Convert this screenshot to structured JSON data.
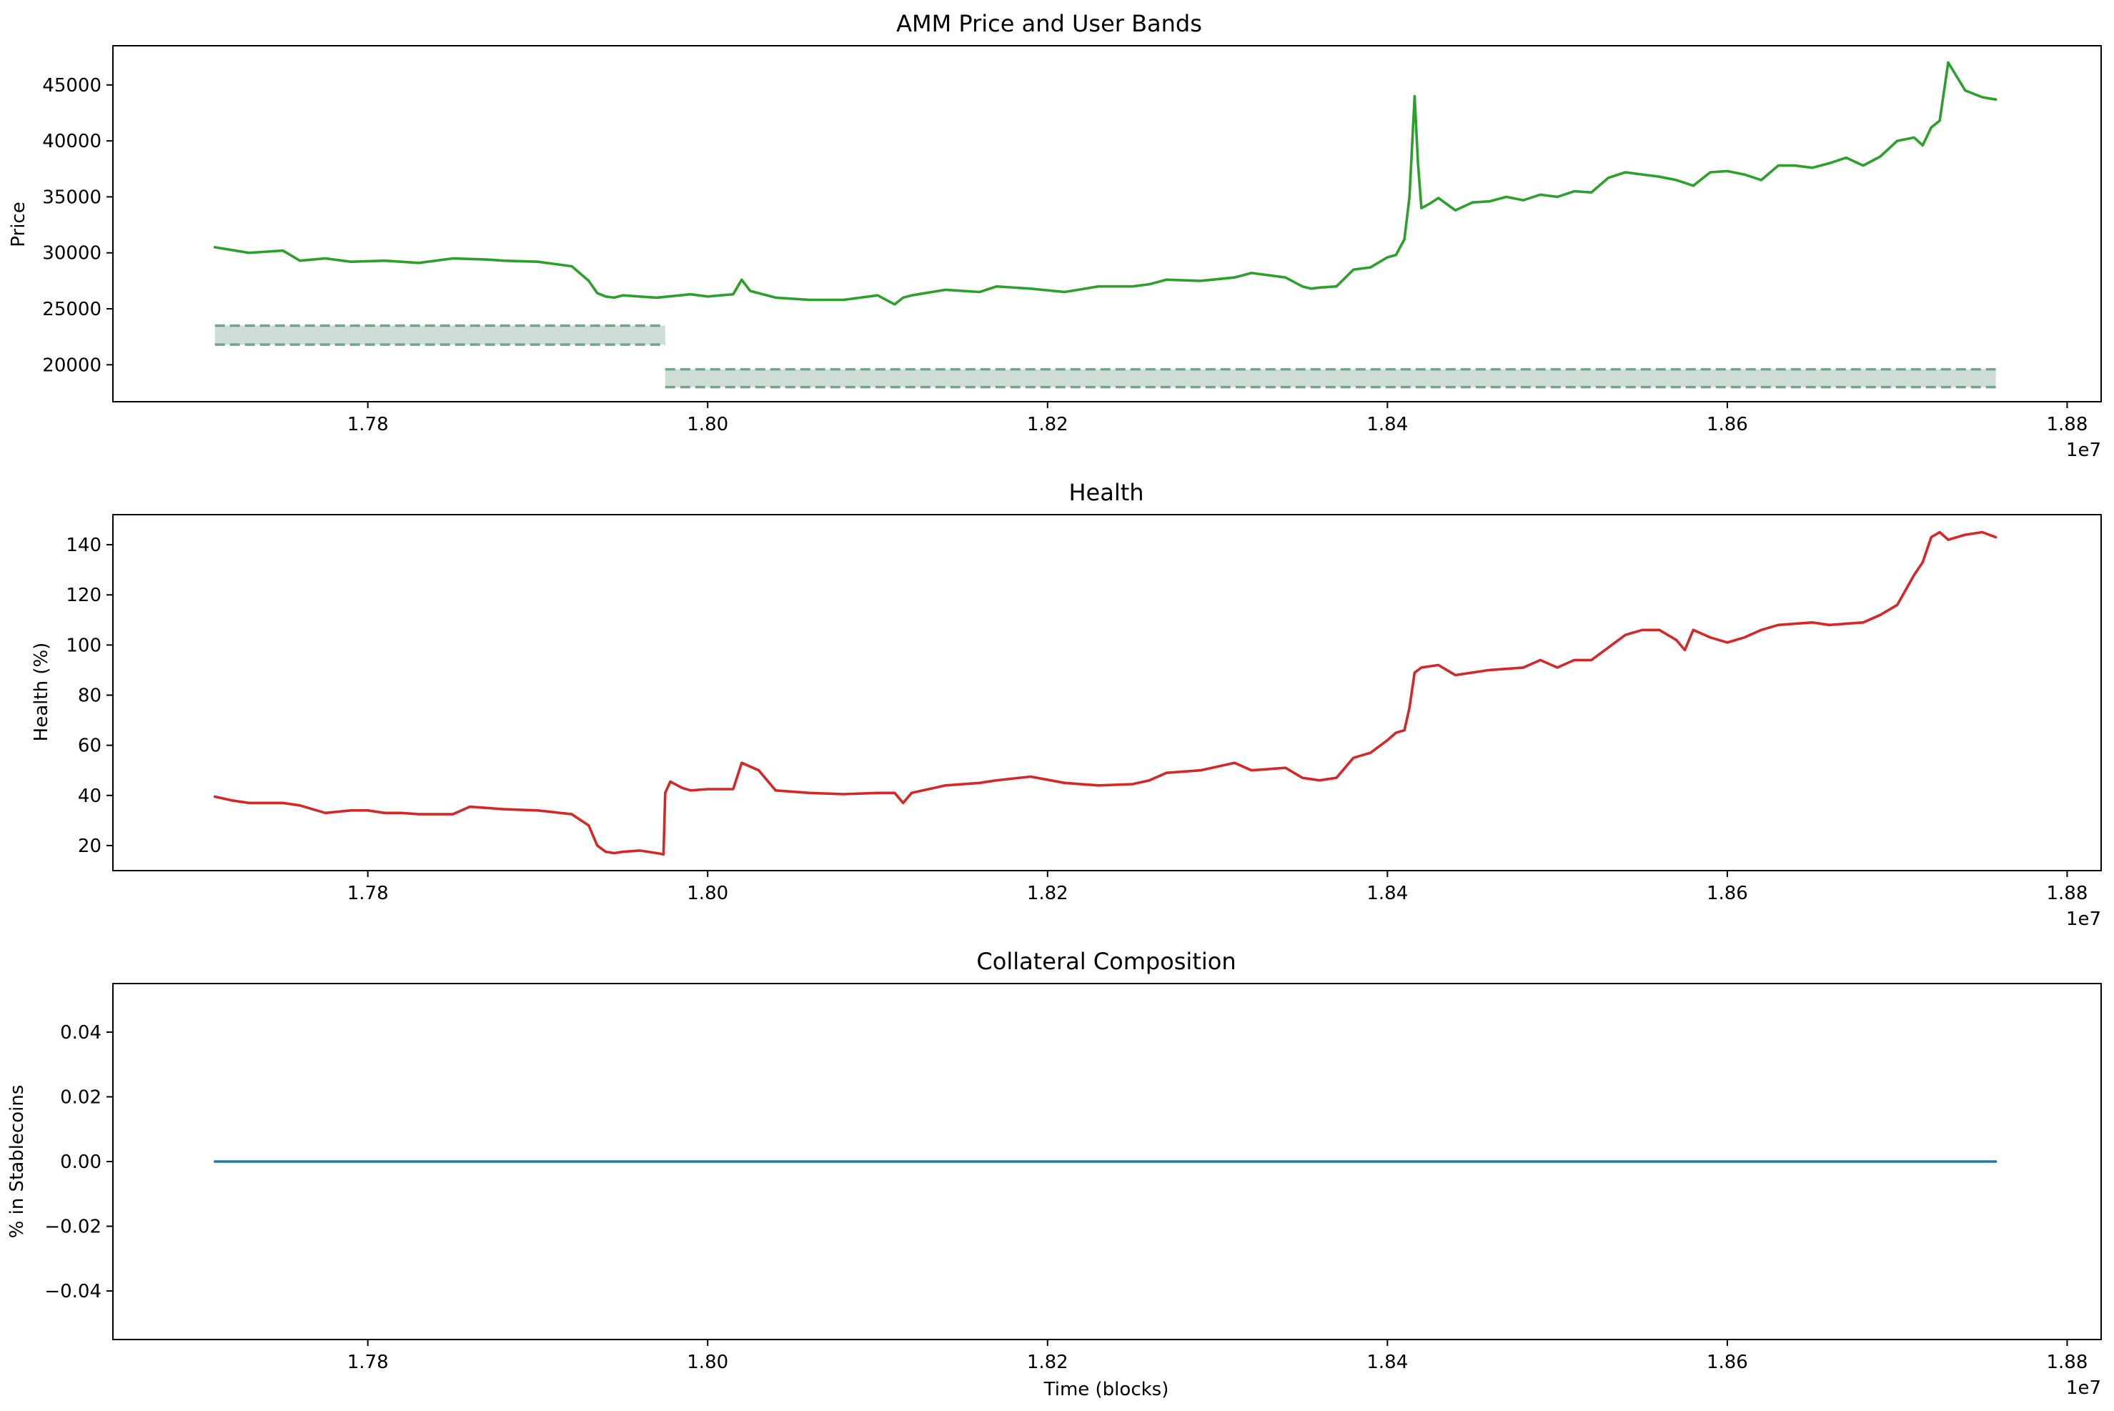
{
  "chart_data": [
    {
      "type": "line",
      "title": "AMM Price and User Bands",
      "xlabel": "",
      "ylabel": "Price",
      "x_offset_label": "1e7",
      "xlim": [
        17650000,
        18820000
      ],
      "ylim": [
        16700,
        48500
      ],
      "xticks": [
        17800000,
        18000000,
        18200000,
        18400000,
        18600000,
        18800000
      ],
      "xtick_labels": [
        "1.78",
        "1.80",
        "1.82",
        "1.84",
        "1.86",
        "1.88"
      ],
      "yticks": [
        20000,
        25000,
        30000,
        35000,
        40000,
        45000
      ],
      "ytick_labels": [
        "20000",
        "25000",
        "30000",
        "35000",
        "40000",
        "45000"
      ],
      "grid": false,
      "series": [
        {
          "color": "#2ca02c",
          "x": [
            17710000,
            17730000,
            17750000,
            17760000,
            17775000,
            17790000,
            17810000,
            17830000,
            17850000,
            17870000,
            17880000,
            17900000,
            17920000,
            17930000,
            17935000,
            17940000,
            17945000,
            17950000,
            17970000,
            17990000,
            18000000,
            18015000,
            18020000,
            18025000,
            18040000,
            18060000,
            18080000,
            18100000,
            18110000,
            18115000,
            18120000,
            18140000,
            18160000,
            18170000,
            18190000,
            18210000,
            18230000,
            18250000,
            18260000,
            18270000,
            18290000,
            18310000,
            18320000,
            18340000,
            18350000,
            18355000,
            18360000,
            18370000,
            18380000,
            18390000,
            18400000,
            18405000,
            18410000,
            18413000,
            18416000,
            18418000,
            18420000,
            18425000,
            18430000,
            18440000,
            18450000,
            18460000,
            18470000,
            18480000,
            18490000,
            18500000,
            18510000,
            18520000,
            18530000,
            18540000,
            18550000,
            18560000,
            18570000,
            18580000,
            18590000,
            18600000,
            18610000,
            18620000,
            18630000,
            18640000,
            18650000,
            18660000,
            18670000,
            18680000,
            18690000,
            18700000,
            18710000,
            18715000,
            18720000,
            18725000,
            18730000,
            18740000,
            18750000,
            18758000
          ],
          "y": [
            30500,
            30000,
            30200,
            29300,
            29500,
            29200,
            29300,
            29100,
            29500,
            29400,
            29300,
            29200,
            28800,
            27500,
            26400,
            26100,
            26000,
            26200,
            26000,
            26300,
            26100,
            26300,
            27600,
            26600,
            26000,
            25800,
            25800,
            26200,
            25400,
            26000,
            26200,
            26700,
            26500,
            27000,
            26800,
            26500,
            27000,
            27000,
            27200,
            27600,
            27500,
            27800,
            28200,
            27800,
            27000,
            26800,
            26900,
            27000,
            28500,
            28700,
            29600,
            29800,
            31200,
            35000,
            44000,
            38000,
            34000,
            34400,
            34900,
            33800,
            34500,
            34600,
            35000,
            34700,
            35200,
            35000,
            35500,
            35400,
            36700,
            37200,
            37000,
            36800,
            36500,
            36000,
            37200,
            37300,
            37000,
            36500,
            37800,
            37800,
            37600,
            38000,
            38500,
            37800,
            38600,
            40000,
            40300,
            39600,
            41200,
            41800,
            47000,
            44500,
            43900,
            43700
          ]
        }
      ],
      "bands": [
        {
          "x_start": 17710000,
          "x_end": 17975000,
          "low": 21800,
          "high": 23500
        },
        {
          "x_start": 17975000,
          "x_end": 18758000,
          "low": 18000,
          "high": 19600
        }
      ],
      "band_color": "#4f8a6c"
    },
    {
      "type": "line",
      "title": "Health",
      "xlabel": "",
      "ylabel": "Health (%)",
      "x_offset_label": "1e7",
      "xlim": [
        17650000,
        18820000
      ],
      "ylim": [
        10,
        152
      ],
      "xticks": [
        17800000,
        18000000,
        18200000,
        18400000,
        18600000,
        18800000
      ],
      "xtick_labels": [
        "1.78",
        "1.80",
        "1.82",
        "1.84",
        "1.86",
        "1.88"
      ],
      "yticks": [
        20,
        40,
        60,
        80,
        100,
        120,
        140
      ],
      "ytick_labels": [
        "20",
        "40",
        "60",
        "80",
        "100",
        "120",
        "140"
      ],
      "grid": false,
      "series": [
        {
          "color": "#d62728",
          "x": [
            17710000,
            17720000,
            17730000,
            17750000,
            17760000,
            17775000,
            17790000,
            17800000,
            17810000,
            17820000,
            17830000,
            17850000,
            17860000,
            17880000,
            17900000,
            17920000,
            17930000,
            17935000,
            17940000,
            17945000,
            17950000,
            17960000,
            17970000,
            17974000,
            17975000,
            17978000,
            17985000,
            17990000,
            18000000,
            18015000,
            18020000,
            18030000,
            18040000,
            18060000,
            18080000,
            18100000,
            18110000,
            18115000,
            18120000,
            18140000,
            18160000,
            18170000,
            18190000,
            18210000,
            18230000,
            18250000,
            18260000,
            18270000,
            18290000,
            18310000,
            18320000,
            18340000,
            18350000,
            18360000,
            18370000,
            18380000,
            18390000,
            18400000,
            18405000,
            18410000,
            18413000,
            18416000,
            18420000,
            18430000,
            18440000,
            18460000,
            18480000,
            18490000,
            18500000,
            18510000,
            18520000,
            18530000,
            18540000,
            18550000,
            18560000,
            18570000,
            18575000,
            18580000,
            18590000,
            18600000,
            18610000,
            18620000,
            18630000,
            18650000,
            18660000,
            18680000,
            18690000,
            18700000,
            18710000,
            18715000,
            18720000,
            18725000,
            18730000,
            18740000,
            18750000,
            18758000
          ],
          "y": [
            39.5,
            38,
            37,
            37,
            36,
            33,
            34,
            34,
            33,
            33,
            32.5,
            32.5,
            35.5,
            34.5,
            34,
            32.5,
            28,
            20,
            17.5,
            17,
            17.5,
            18,
            17,
            16.5,
            41,
            45.5,
            43,
            42,
            42.5,
            42.5,
            53,
            50,
            42,
            41,
            40.5,
            41,
            41,
            37,
            41,
            44,
            45,
            46,
            47.5,
            45,
            44,
            44.5,
            46,
            49,
            50,
            53,
            50,
            51,
            47,
            46,
            47,
            55,
            57,
            62,
            65,
            66,
            75,
            89,
            91,
            92,
            88,
            90,
            91,
            94,
            91,
            94,
            94,
            99,
            104,
            106,
            106,
            102,
            98,
            106,
            103,
            101,
            103,
            106,
            108,
            109,
            108,
            109,
            112,
            116,
            128,
            133,
            143,
            145,
            142,
            144,
            145,
            143
          ]
        }
      ]
    },
    {
      "type": "line",
      "title": "Collateral Composition",
      "xlabel": "Time (blocks)",
      "ylabel": "% in Stablecoins",
      "x_offset_label": "1e7",
      "xlim": [
        17650000,
        18820000
      ],
      "ylim": [
        -0.055,
        0.055
      ],
      "xticks": [
        17800000,
        18000000,
        18200000,
        18400000,
        18600000,
        18800000
      ],
      "xtick_labels": [
        "1.78",
        "1.80",
        "1.82",
        "1.84",
        "1.86",
        "1.88"
      ],
      "yticks": [
        -0.04,
        -0.02,
        0.0,
        0.02,
        0.04
      ],
      "ytick_labels": [
        "−0.04",
        "−0.02",
        "0.00",
        "0.02",
        "0.04"
      ],
      "grid": false,
      "series": [
        {
          "color": "#1f77b4",
          "x": [
            17710000,
            18048000,
            18049000,
            18758000
          ],
          "y": [
            0,
            0,
            0,
            0
          ]
        }
      ]
    }
  ]
}
